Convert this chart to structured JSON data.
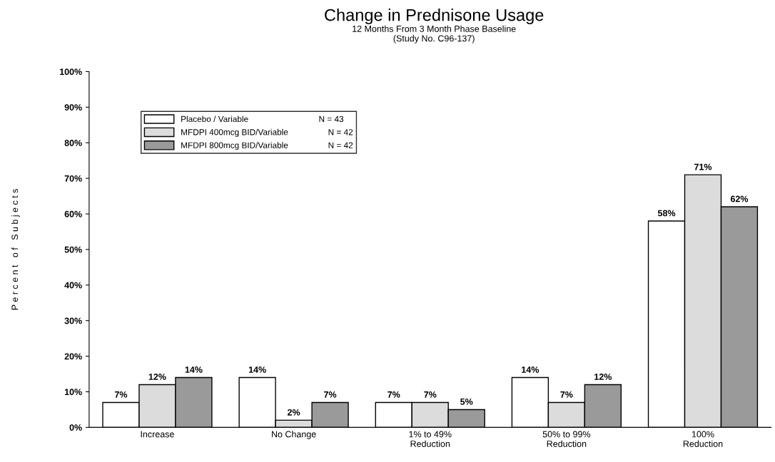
{
  "chart_data": {
    "type": "bar",
    "title": "Change in Prednisone Usage",
    "subtitle": "12 Months From 3 Month Phase Baseline\n(Study No. C96-137)",
    "ylabel": "P e r c e n t   o f   S u b j e c t s",
    "categories": [
      "Increase",
      "No Change",
      "1% to 49%\nReduction",
      "50% to 99%\nReduction",
      "100%\nReduction"
    ],
    "series": [
      {
        "name": "Placebo / Variable                              N = 43",
        "color": "#ffffff",
        "values": [
          7,
          14,
          7,
          14,
          58
        ],
        "value_labels": [
          "7%",
          "14%",
          "7%",
          "14%",
          "58%"
        ]
      },
      {
        "name": "MFDPI 400mcg BID/Variable                 N = 42",
        "color": "#dcdcdc",
        "values": [
          12,
          2,
          7,
          7,
          71
        ],
        "value_labels": [
          "12%",
          "2%",
          "7%",
          "7%",
          "71%"
        ]
      },
      {
        "name": "MFDPI 800mcg BID/Variable                 N = 42",
        "color": "#9a9a9a",
        "values": [
          14,
          7,
          5,
          12,
          62
        ],
        "value_labels": [
          "14%",
          "7%",
          "5%",
          "12%",
          "62%"
        ]
      }
    ],
    "ylim": [
      0,
      100
    ],
    "yticks": [
      {
        "value": 0,
        "label": "0%"
      },
      {
        "value": 10,
        "label": "10%"
      },
      {
        "value": 20,
        "label": "20%"
      },
      {
        "value": 30,
        "label": "30%"
      },
      {
        "value": 40,
        "label": "40%"
      },
      {
        "value": 50,
        "label": "50%"
      },
      {
        "value": 60,
        "label": "60%"
      },
      {
        "value": 70,
        "label": "70%"
      },
      {
        "value": 80,
        "label": "80%"
      },
      {
        "value": 90,
        "label": "90%"
      },
      {
        "value": 100,
        "label": "100%"
      }
    ],
    "grid": false,
    "legend": "top left"
  }
}
